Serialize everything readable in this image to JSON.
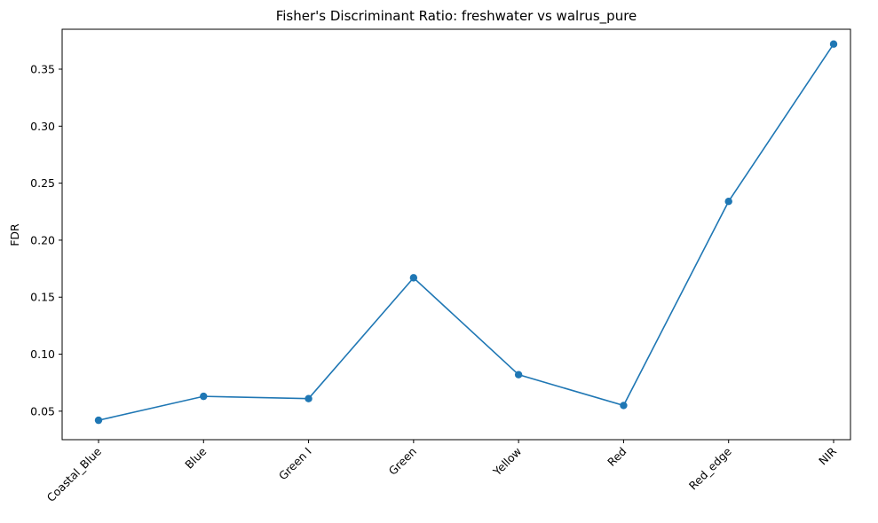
{
  "chart_data": {
    "type": "line",
    "title": "Fisher's Discriminant Ratio: freshwater vs walrus_pure",
    "xlabel": "",
    "ylabel": "FDR",
    "categories": [
      "Coastal_Blue",
      "Blue",
      "Green I",
      "Green",
      "Yellow",
      "Red",
      "Red_edge",
      "NIR"
    ],
    "series": [
      {
        "values": [
          0.042,
          0.063,
          0.061,
          0.167,
          0.082,
          0.055,
          0.234,
          0.372
        ]
      }
    ],
    "ylim": [
      0.025,
      0.385
    ],
    "yticks": [
      0.05,
      0.1,
      0.15,
      0.2,
      0.25,
      0.3,
      0.35
    ],
    "ytick_labels": [
      "0.05",
      "0.10",
      "0.15",
      "0.20",
      "0.25",
      "0.30",
      "0.35"
    ],
    "grid": false,
    "markers": true,
    "line_color": "#1f77b4",
    "xtick_rotation": 45
  }
}
